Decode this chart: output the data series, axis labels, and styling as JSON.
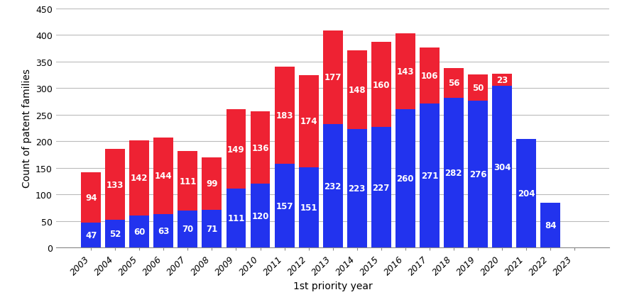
{
  "years": [
    2003,
    2004,
    2005,
    2006,
    2007,
    2008,
    2009,
    2010,
    2011,
    2012,
    2013,
    2014,
    2015,
    2016,
    2017,
    2018,
    2019,
    2020,
    2021,
    2022,
    2023
  ],
  "blue_values": [
    47,
    52,
    60,
    63,
    70,
    71,
    111,
    120,
    157,
    151,
    232,
    223,
    227,
    260,
    271,
    282,
    276,
    304,
    204,
    84,
    0
  ],
  "red_values": [
    94,
    133,
    142,
    144,
    111,
    99,
    149,
    136,
    183,
    174,
    177,
    148,
    160,
    143,
    106,
    56,
    50,
    23,
    0,
    0,
    0
  ],
  "blue_color": "#2233ee",
  "red_color": "#ee2233",
  "xlabel": "1st priority year",
  "ylabel": "Count of patent families",
  "ylim": [
    0,
    450
  ],
  "yticks": [
    0,
    50,
    100,
    150,
    200,
    250,
    300,
    350,
    400,
    450
  ],
  "label_fontsize": 8.5,
  "axis_label_fontsize": 10,
  "tick_fontsize": 9,
  "background_color": "#ffffff",
  "grid_color": "#bbbbbb",
  "bar_width": 0.82
}
